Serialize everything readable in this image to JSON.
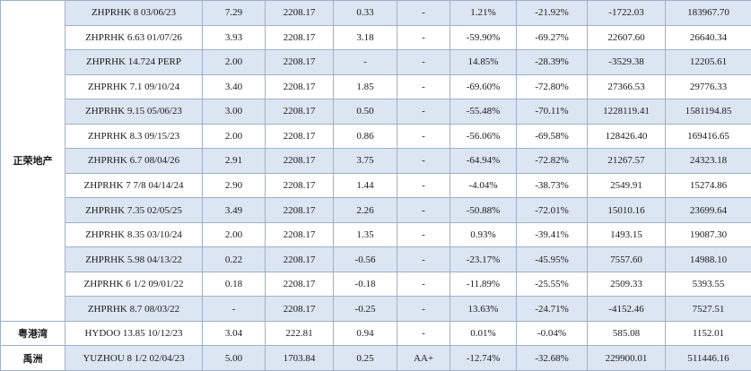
{
  "groups": [
    {
      "issuer": "正荣地产",
      "rows": [
        {
          "bond": "ZHPRHK 8 03/06/23",
          "c1": "7.29",
          "c2": "2208.17",
          "c3": "0.33",
          "rating": "-",
          "p1": "1.21%",
          "p2": "-21.92%",
          "v1": "-1722.03",
          "v2": "183967.70"
        },
        {
          "bond": "ZHPRHK 6.63 01/07/26",
          "c1": "3.93",
          "c2": "2208.17",
          "c3": "3.18",
          "rating": "-",
          "p1": "-59.90%",
          "p2": "-69.27%",
          "v1": "22607.60",
          "v2": "26640.34"
        },
        {
          "bond": "ZHPRHK 14.724 PERP",
          "c1": "2.00",
          "c2": "2208.17",
          "c3": "-",
          "rating": "-",
          "p1": "14.85%",
          "p2": "-28.39%",
          "v1": "-3529.38",
          "v2": "12205.61"
        },
        {
          "bond": "ZHPRHK 7.1 09/10/24",
          "c1": "3.40",
          "c2": "2208.17",
          "c3": "1.85",
          "rating": "-",
          "p1": "-69.60%",
          "p2": "-72.80%",
          "v1": "27366.53",
          "v2": "29776.33"
        },
        {
          "bond": "ZHPRHK 9.15 05/06/23",
          "c1": "3.00",
          "c2": "2208.17",
          "c3": "0.50",
          "rating": "-",
          "p1": "-55.48%",
          "p2": "-70.11%",
          "v1": "1228119.41",
          "v2": "1581194.85"
        },
        {
          "bond": "ZHPRHK 8.3 09/15/23",
          "c1": "2.00",
          "c2": "2208.17",
          "c3": "0.86",
          "rating": "-",
          "p1": "-56.06%",
          "p2": "-69.58%",
          "v1": "128426.40",
          "v2": "169416.65"
        },
        {
          "bond": "ZHPRHK 6.7 08/04/26",
          "c1": "2.91",
          "c2": "2208.17",
          "c3": "3.75",
          "rating": "-",
          "p1": "-64.94%",
          "p2": "-72.82%",
          "v1": "21267.57",
          "v2": "24323.18"
        },
        {
          "bond": "ZHPRHK 7 7/8 04/14/24",
          "c1": "2.90",
          "c2": "2208.17",
          "c3": "1.44",
          "rating": "-",
          "p1": "-4.04%",
          "p2": "-38.73%",
          "v1": "2549.91",
          "v2": "15274.86"
        },
        {
          "bond": "ZHPRHK 7.35 02/05/25",
          "c1": "3.49",
          "c2": "2208.17",
          "c3": "2.26",
          "rating": "-",
          "p1": "-50.88%",
          "p2": "-72.01%",
          "v1": "15010.16",
          "v2": "23699.64"
        },
        {
          "bond": "ZHPRHK 8.35 03/10/24",
          "c1": "2.00",
          "c2": "2208.17",
          "c3": "1.35",
          "rating": "-",
          "p1": "0.93%",
          "p2": "-39.41%",
          "v1": "1493.15",
          "v2": "19087.30"
        },
        {
          "bond": "ZHPRHK 5.98 04/13/22",
          "c1": "0.22",
          "c2": "2208.17",
          "c3": "-0.56",
          "rating": "-",
          "p1": "-23.17%",
          "p2": "-45.95%",
          "v1": "7557.60",
          "v2": "14988.10"
        },
        {
          "bond": "ZHPRHK 6 1/2 09/01/22",
          "c1": "0.18",
          "c2": "2208.17",
          "c3": "-0.18",
          "rating": "-",
          "p1": "-11.89%",
          "p2": "-25.55%",
          "v1": "2509.33",
          "v2": "5393.55"
        },
        {
          "bond": "ZHPRHK 8.7 08/03/22",
          "c1": "-",
          "c2": "2208.17",
          "c3": "-0.25",
          "rating": "-",
          "p1": "13.63%",
          "p2": "-24.71%",
          "v1": "-4152.46",
          "v2": "7527.51"
        }
      ]
    },
    {
      "issuer": "粤港湾",
      "rows": [
        {
          "bond": "HYDOO 13.85 10/12/23",
          "c1": "3.04",
          "c2": "222.81",
          "c3": "0.94",
          "rating": "-",
          "p1": "0.01%",
          "p2": "-0.04%",
          "v1": "585.08",
          "v2": "1152.01"
        }
      ]
    },
    {
      "issuer": "禹洲",
      "rows": [
        {
          "bond": "YUZHOU 8 1/2 02/04/23",
          "c1": "5.00",
          "c2": "1703.84",
          "c3": "0.25",
          "rating": "AA+",
          "p1": "-12.74%",
          "p2": "-32.68%",
          "v1": "229900.01",
          "v2": "511446.16"
        }
      ]
    }
  ]
}
